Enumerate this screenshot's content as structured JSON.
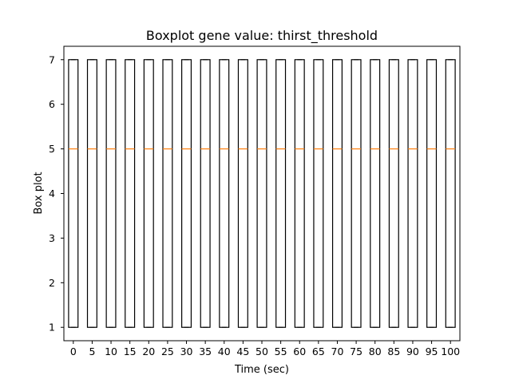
{
  "chart_data": {
    "type": "boxplot",
    "title": "Boxplot gene value: thirst_threshold",
    "xlabel": "Time (sec)",
    "ylabel": "Box plot",
    "categories": [
      "0",
      "5",
      "10",
      "15",
      "20",
      "25",
      "30",
      "35",
      "40",
      "45",
      "50",
      "55",
      "60",
      "65",
      "70",
      "75",
      "80",
      "85",
      "90",
      "95",
      "100"
    ],
    "boxes": [
      {
        "min": 1,
        "q1": 1,
        "median": 5,
        "q3": 7,
        "max": 7
      },
      {
        "min": 1,
        "q1": 1,
        "median": 5,
        "q3": 7,
        "max": 7
      },
      {
        "min": 1,
        "q1": 1,
        "median": 5,
        "q3": 7,
        "max": 7
      },
      {
        "min": 1,
        "q1": 1,
        "median": 5,
        "q3": 7,
        "max": 7
      },
      {
        "min": 1,
        "q1": 1,
        "median": 5,
        "q3": 7,
        "max": 7
      },
      {
        "min": 1,
        "q1": 1,
        "median": 5,
        "q3": 7,
        "max": 7
      },
      {
        "min": 1,
        "q1": 1,
        "median": 5,
        "q3": 7,
        "max": 7
      },
      {
        "min": 1,
        "q1": 1,
        "median": 5,
        "q3": 7,
        "max": 7
      },
      {
        "min": 1,
        "q1": 1,
        "median": 5,
        "q3": 7,
        "max": 7
      },
      {
        "min": 1,
        "q1": 1,
        "median": 5,
        "q3": 7,
        "max": 7
      },
      {
        "min": 1,
        "q1": 1,
        "median": 5,
        "q3": 7,
        "max": 7
      },
      {
        "min": 1,
        "q1": 1,
        "median": 5,
        "q3": 7,
        "max": 7
      },
      {
        "min": 1,
        "q1": 1,
        "median": 5,
        "q3": 7,
        "max": 7
      },
      {
        "min": 1,
        "q1": 1,
        "median": 5,
        "q3": 7,
        "max": 7
      },
      {
        "min": 1,
        "q1": 1,
        "median": 5,
        "q3": 7,
        "max": 7
      },
      {
        "min": 1,
        "q1": 1,
        "median": 5,
        "q3": 7,
        "max": 7
      },
      {
        "min": 1,
        "q1": 1,
        "median": 5,
        "q3": 7,
        "max": 7
      },
      {
        "min": 1,
        "q1": 1,
        "median": 5,
        "q3": 7,
        "max": 7
      },
      {
        "min": 1,
        "q1": 1,
        "median": 5,
        "q3": 7,
        "max": 7
      },
      {
        "min": 1,
        "q1": 1,
        "median": 5,
        "q3": 7,
        "max": 7
      },
      {
        "min": 1,
        "q1": 1,
        "median": 5,
        "q3": 7,
        "max": 7
      }
    ],
    "yticks": [
      1,
      2,
      3,
      4,
      5,
      6,
      7
    ],
    "ylim": [
      0.7,
      7.3
    ],
    "grid": false,
    "colors": {
      "box": "#000000",
      "median": "#ff7f0e",
      "background": "#ffffff"
    }
  }
}
